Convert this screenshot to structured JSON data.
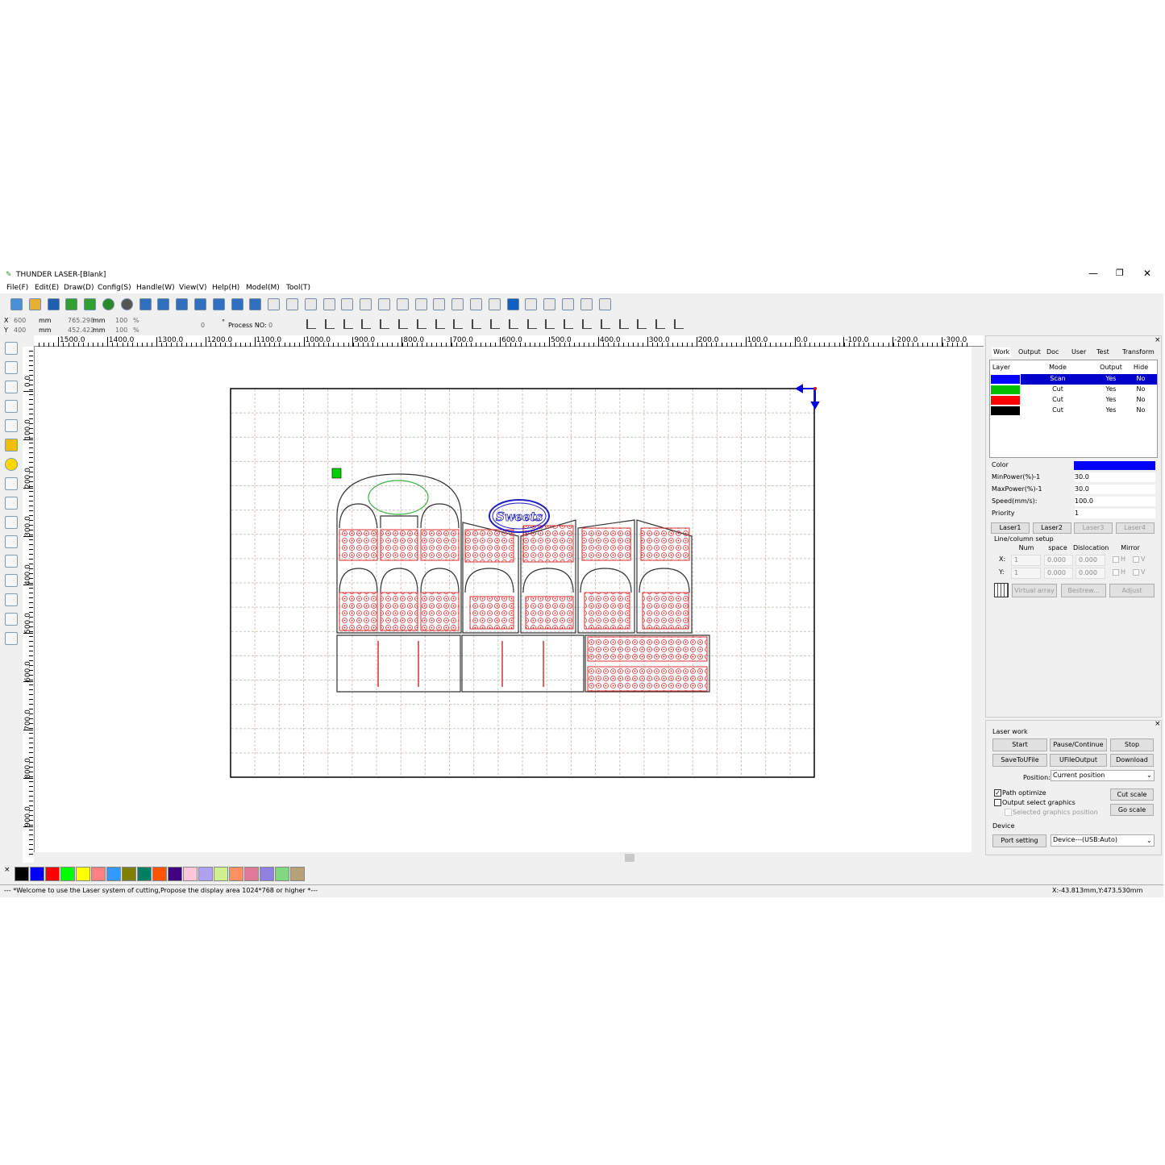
{
  "title": "THUNDER LASER-[Blank]",
  "menu": [
    "File(F)",
    "Edit(E)",
    "Draw(D)",
    "Config(S)",
    "Handle(W)",
    "View(V)",
    "Help(H)",
    "Model(M)",
    "Tool(T)"
  ],
  "toolbar": {
    "x_label": "X",
    "x_value": "600",
    "x_unit": "mm",
    "y_label": "Y",
    "y_value": "400",
    "y_unit": "mm",
    "width": "765.298",
    "width_unit": "mm",
    "height": "452.422",
    "height_unit": "mm",
    "scale_x": "100",
    "scale_x_unit": "%",
    "scale_y": "100",
    "scale_y_unit": "%",
    "angle": "0",
    "angle_unit": "°",
    "process_label": "Process NO:",
    "process_no": "0"
  },
  "ruler": {
    "top": [
      "1500.0",
      "1400.0",
      "1300.0",
      "1200.0",
      "1100.0",
      "1000.0",
      "900.0",
      "800.0",
      "700.0",
      "600.0",
      "500.0",
      "400.0",
      "300.0",
      "200.0",
      "100.0",
      "0.0",
      "-100.0",
      "-200.0",
      "-300.0"
    ],
    "left": [
      "0.0",
      "100.0",
      "200.0",
      "300.0",
      "400.0",
      "500.0",
      "600.0",
      "700.0",
      "800.0",
      "900.0"
    ]
  },
  "canvas": {
    "logo_text": "Sweets"
  },
  "palette": [
    "#000000",
    "#0000ff",
    "#ff0000",
    "#00ff00",
    "#ffff00",
    "#ff8080",
    "#3399ff",
    "#808000",
    "#008060",
    "#ff5500",
    "#400080",
    "#ffc8d8",
    "#b0a0f0",
    "#d0f090",
    "#ff9060",
    "#e07898",
    "#9080e0",
    "#80d880",
    "#b8a078"
  ],
  "panel": {
    "tabs": [
      "Work",
      "Output",
      "Doc",
      "User",
      "Test",
      "Transform"
    ],
    "layer_headers": [
      "Layer",
      "Mode",
      "Output",
      "Hide"
    ],
    "layers": [
      {
        "color": "#0000ff",
        "mode": "Scan",
        "output": "Yes",
        "hide": "No"
      },
      {
        "color": "#00c000",
        "mode": "Cut",
        "output": "Yes",
        "hide": "No"
      },
      {
        "color": "#ff0000",
        "mode": "Cut",
        "output": "Yes",
        "hide": "No"
      },
      {
        "color": "#000000",
        "mode": "Cut",
        "output": "Yes",
        "hide": "No"
      }
    ],
    "color_label": "Color",
    "color_value": "#0000ff",
    "properties": [
      {
        "label": "MinPower(%)-1",
        "value": "30.0"
      },
      {
        "label": "MaxPower(%)-1",
        "value": "30.0"
      },
      {
        "label": "Speed(mm/s):",
        "value": "100.0"
      },
      {
        "label": "Priority",
        "value": "1"
      }
    ],
    "laser_tabs": [
      "Laser1",
      "Laser2",
      "Laser3",
      "Laser4"
    ],
    "line_column": {
      "title": "Line/column setup",
      "headers": [
        "Num",
        "space",
        "Dislocation",
        "Mirror"
      ],
      "rows": [
        {
          "axis": "X:",
          "num": "1",
          "space": "0.000",
          "dislocation": "0.000",
          "mirror": [
            "H",
            "V"
          ]
        },
        {
          "axis": "Y:",
          "num": "1",
          "space": "0.000",
          "dislocation": "0.000",
          "mirror": [
            "H",
            "V"
          ]
        }
      ]
    },
    "array_buttons": [
      "Virtual array",
      "Bestrew...",
      "Adjust"
    ]
  },
  "laser_work": {
    "title": "Laser work",
    "buttons": [
      "Start",
      "Pause/Continue",
      "Stop",
      "SaveToUFile",
      "UFileOutput",
      "Download"
    ],
    "position_label": "Position:",
    "position_value": "Current position",
    "options": [
      {
        "label": "Path optimize",
        "checked": true
      },
      {
        "label": "Output select graphics",
        "checked": false
      },
      {
        "label": "Selected graphics position",
        "checked": false
      }
    ],
    "scale_buttons": [
      "Cut scale",
      "Go scale"
    ]
  },
  "device": {
    "title": "Device",
    "button": "Port setting",
    "value": "Device---(USB:Auto)"
  },
  "status": {
    "message": "--- *Welcome to use the Laser system of cutting,Propose the display area 1024*768 or higher *---",
    "coords": "X:-43.813mm,Y:473.530mm"
  }
}
